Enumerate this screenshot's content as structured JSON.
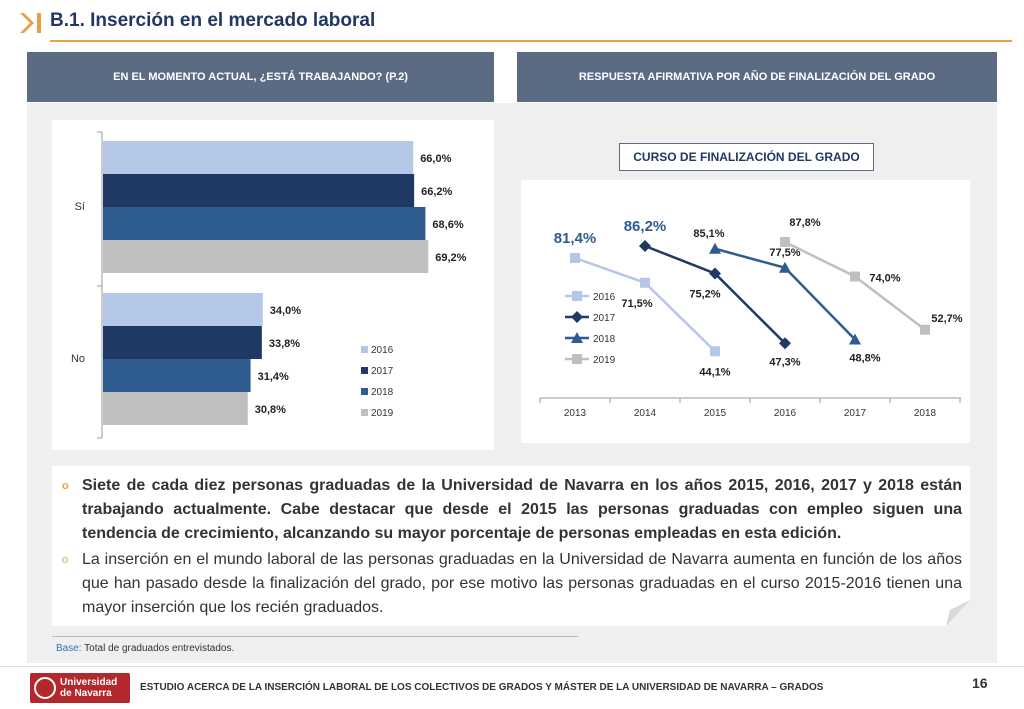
{
  "header": {
    "title": "B.1. Inserción en el mercado laboral",
    "left_panel_title": "EN EL MOMENTO ACTUAL, ¿ESTÁ TRABAJANDO? (P.2)",
    "right_panel_title": "RESPUESTA AFIRMATIVA POR AÑO DE FINALIZACIÓN DEL GRADO",
    "curso_label": "CURSO DE FINALIZACIÓN DEL GRADO"
  },
  "colors": {
    "2016": "#b4c7e7",
    "2017": "#203864",
    "2018": "#2f5c8f",
    "2019": "#bfbfbf",
    "accent": "#e8a046",
    "header_bg": "#5b6b84"
  },
  "chart_data": [
    {
      "type": "bar",
      "orientation": "horizontal",
      "categories": [
        "Sí",
        "No"
      ],
      "series": [
        {
          "name": "2016",
          "values": [
            66.0,
            34.0
          ],
          "labels": [
            "66,0%",
            "34,0%"
          ]
        },
        {
          "name": "2017",
          "values": [
            66.2,
            33.8
          ],
          "labels": [
            "66,2%",
            "33,8%"
          ]
        },
        {
          "name": "2018",
          "values": [
            68.6,
            31.4
          ],
          "labels": [
            "68,6%",
            "31,4%"
          ]
        },
        {
          "name": "2019",
          "values": [
            69.2,
            30.8
          ],
          "labels": [
            "69,2%",
            "30,8%"
          ]
        }
      ],
      "xlim": [
        0,
        100
      ],
      "legend": "bottom-right"
    },
    {
      "type": "line",
      "x": [
        "2013",
        "2014",
        "2015",
        "2016",
        "2017",
        "2018"
      ],
      "series": [
        {
          "name": "2016",
          "marker": "square",
          "points": [
            [
              0,
              81.4
            ],
            [
              1,
              71.5
            ],
            [
              2,
              44.1
            ]
          ],
          "labels": [
            "81,4%",
            "71,5%",
            "44,1%"
          ]
        },
        {
          "name": "2017",
          "marker": "diamond",
          "points": [
            [
              1,
              86.2
            ],
            [
              2,
              75.2
            ],
            [
              3,
              47.3
            ]
          ],
          "labels": [
            "86,2%",
            "75,2%",
            "47,3%"
          ]
        },
        {
          "name": "2018",
          "marker": "triangle",
          "points": [
            [
              2,
              85.1
            ],
            [
              3,
              77.5
            ],
            [
              4,
              48.8
            ]
          ],
          "labels": [
            "85,1%",
            "77,5%",
            "48,8%"
          ]
        },
        {
          "name": "2019",
          "marker": "square",
          "points": [
            [
              3,
              87.8
            ],
            [
              4,
              74.0
            ],
            [
              5,
              52.7
            ]
          ],
          "labels": [
            "87,8%",
            "74,0%",
            "52,7%"
          ]
        }
      ],
      "ylim": [
        30,
        100
      ],
      "legend": "left"
    }
  ],
  "body": {
    "bullet1": "Siete de cada diez personas graduadas de la Universidad de Navarra en los años 2015, 2016, 2017 y 2018 están trabajando actualmente. Cabe destacar que desde el 2015 las personas graduadas con empleo siguen una tendencia de crecimiento, alcanzando su mayor porcentaje de personas empleadas en esta edición.",
    "bullet2": "La inserción en el mundo laboral de las personas graduadas en la Universidad de Navarra aumenta en función de los años que han pasado desde la finalización del grado, por ese motivo las personas graduadas en el curso 2015-2016 tienen una mayor inserción que los recién graduados.",
    "bullet_symbol": "o"
  },
  "base": {
    "label": "Base:",
    "text": " Total de graduados entrevistados."
  },
  "footer": {
    "logo_line1": "Universidad",
    "logo_line2": "de Navarra",
    "text": "ESTUDIO ACERCA DE LA INSERCIÓN LABORAL DE LOS COLECTIVOS DE GRADOS Y MÁSTER DE LA UNIVERSIDAD DE NAVARRA – GRADOS",
    "page": "16"
  }
}
